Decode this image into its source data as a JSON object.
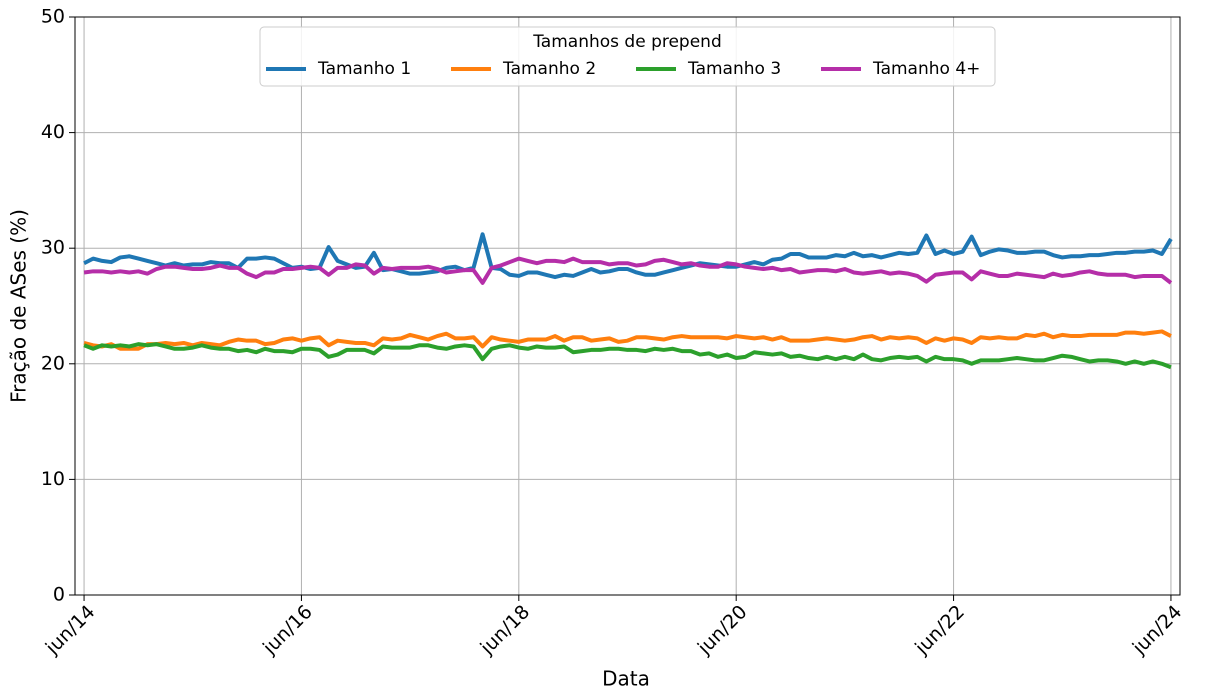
{
  "chart_data": {
    "type": "line",
    "xlabel": "Data",
    "ylabel": "Fração de ASes (%)",
    "legend_title": "Tamanhos de prepend",
    "legend": "upper center",
    "grid": true,
    "x": [
      "2014-06",
      "2014-07",
      "2014-08",
      "2014-09",
      "2014-10",
      "2014-11",
      "2014-12",
      "2015-01",
      "2015-02",
      "2015-03",
      "2015-04",
      "2015-05",
      "2015-06",
      "2015-07",
      "2015-08",
      "2015-09",
      "2015-10",
      "2015-11",
      "2015-12",
      "2016-01",
      "2016-02",
      "2016-03",
      "2016-04",
      "2016-05",
      "2016-06",
      "2016-07",
      "2016-08",
      "2016-09",
      "2016-10",
      "2016-11",
      "2016-12",
      "2017-01",
      "2017-02",
      "2017-03",
      "2017-04",
      "2017-05",
      "2017-06",
      "2017-07",
      "2017-08",
      "2017-09",
      "2017-10",
      "2017-11",
      "2017-12",
      "2018-01",
      "2018-02",
      "2018-03",
      "2018-04",
      "2018-05",
      "2018-06",
      "2018-07",
      "2018-08",
      "2018-09",
      "2018-10",
      "2018-11",
      "2018-12",
      "2019-01",
      "2019-02",
      "2019-03",
      "2019-04",
      "2019-05",
      "2019-06",
      "2019-07",
      "2019-08",
      "2019-09",
      "2019-10",
      "2019-11",
      "2019-12",
      "2020-01",
      "2020-02",
      "2020-03",
      "2020-04",
      "2020-05",
      "2020-06",
      "2020-07",
      "2020-08",
      "2020-09",
      "2020-10",
      "2020-11",
      "2020-12",
      "2021-01",
      "2021-02",
      "2021-03",
      "2021-04",
      "2021-05",
      "2021-06",
      "2021-07",
      "2021-08",
      "2021-09",
      "2021-10",
      "2021-11",
      "2021-12",
      "2022-01",
      "2022-02",
      "2022-03",
      "2022-04",
      "2022-05",
      "2022-06",
      "2022-07",
      "2022-08",
      "2022-09",
      "2022-10",
      "2022-11",
      "2022-12",
      "2023-01",
      "2023-02",
      "2023-03",
      "2023-04",
      "2023-05",
      "2023-06",
      "2023-07",
      "2023-08",
      "2023-09",
      "2023-10",
      "2023-11",
      "2023-12",
      "2024-01",
      "2024-02",
      "2024-03",
      "2024-04",
      "2024-05",
      "2024-06"
    ],
    "xlim": [
      "2014-05",
      "2024-07"
    ],
    "xticks": [
      {
        "value": "2014-06",
        "label": "jun/14"
      },
      {
        "value": "2016-06",
        "label": "jun/16"
      },
      {
        "value": "2018-06",
        "label": "jun/18"
      },
      {
        "value": "2020-06",
        "label": "jun/20"
      },
      {
        "value": "2022-06",
        "label": "jun/22"
      },
      {
        "value": "2024-06",
        "label": "jun/24"
      }
    ],
    "ylim": [
      0,
      50
    ],
    "yticks": [
      0,
      10,
      20,
      30,
      40,
      50
    ],
    "series": [
      {
        "name": "Tamanho 1",
        "color": "#1f77b4",
        "values": [
          28.7,
          29.1,
          28.9,
          28.8,
          29.2,
          29.3,
          29.1,
          28.9,
          28.7,
          28.5,
          28.7,
          28.5,
          28.6,
          28.6,
          28.8,
          28.7,
          28.7,
          28.3,
          29.1,
          29.1,
          29.2,
          29.1,
          28.7,
          28.3,
          28.4,
          28.2,
          28.3,
          30.1,
          28.9,
          28.6,
          28.3,
          28.4,
          29.6,
          28.1,
          28.2,
          28.0,
          27.8,
          27.8,
          27.9,
          28.0,
          28.3,
          28.4,
          28.1,
          28.3,
          31.2,
          28.3,
          28.2,
          27.7,
          27.6,
          27.9,
          27.9,
          27.7,
          27.5,
          27.7,
          27.6,
          27.9,
          28.2,
          27.9,
          28.0,
          28.2,
          28.2,
          27.9,
          27.7,
          27.7,
          27.9,
          28.1,
          28.3,
          28.5,
          28.7,
          28.6,
          28.5,
          28.4,
          28.4,
          28.6,
          28.8,
          28.6,
          29.0,
          29.1,
          29.5,
          29.5,
          29.2,
          29.2,
          29.2,
          29.4,
          29.3,
          29.6,
          29.3,
          29.4,
          29.2,
          29.4,
          29.6,
          29.5,
          29.6,
          31.1,
          29.5,
          29.8,
          29.5,
          29.7,
          31.0,
          29.4,
          29.7,
          29.9,
          29.8,
          29.6,
          29.6,
          29.7,
          29.7,
          29.4,
          29.2,
          29.3,
          29.3,
          29.4,
          29.4,
          29.5,
          29.6,
          29.6,
          29.7,
          29.7,
          29.8,
          29.5,
          30.8
        ]
      },
      {
        "name": "Tamanho 2",
        "color": "#ff7f0e",
        "values": [
          21.8,
          21.6,
          21.5,
          21.7,
          21.3,
          21.3,
          21.3,
          21.7,
          21.7,
          21.8,
          21.7,
          21.8,
          21.6,
          21.8,
          21.7,
          21.6,
          21.9,
          22.1,
          22.0,
          22.0,
          21.7,
          21.8,
          22.1,
          22.2,
          22.0,
          22.2,
          22.3,
          21.6,
          22.0,
          21.9,
          21.8,
          21.8,
          21.6,
          22.2,
          22.1,
          22.2,
          22.5,
          22.3,
          22.1,
          22.4,
          22.6,
          22.2,
          22.2,
          22.3,
          21.5,
          22.3,
          22.1,
          22.0,
          21.9,
          22.1,
          22.1,
          22.1,
          22.4,
          22.0,
          22.3,
          22.3,
          22.0,
          22.1,
          22.2,
          21.9,
          22.0,
          22.3,
          22.3,
          22.2,
          22.1,
          22.3,
          22.4,
          22.3,
          22.3,
          22.3,
          22.3,
          22.2,
          22.4,
          22.3,
          22.2,
          22.3,
          22.1,
          22.3,
          22.0,
          22.0,
          22.0,
          22.1,
          22.2,
          22.1,
          22.0,
          22.1,
          22.3,
          22.4,
          22.1,
          22.3,
          22.2,
          22.3,
          22.2,
          21.8,
          22.2,
          22.0,
          22.2,
          22.1,
          21.8,
          22.3,
          22.2,
          22.3,
          22.2,
          22.2,
          22.5,
          22.4,
          22.6,
          22.3,
          22.5,
          22.4,
          22.4,
          22.5,
          22.5,
          22.5,
          22.5,
          22.7,
          22.7,
          22.6,
          22.7,
          22.8,
          22.4
        ]
      },
      {
        "name": "Tamanho 3",
        "color": "#2ca02c",
        "values": [
          21.6,
          21.3,
          21.6,
          21.5,
          21.6,
          21.5,
          21.7,
          21.6,
          21.7,
          21.5,
          21.3,
          21.3,
          21.4,
          21.6,
          21.4,
          21.3,
          21.3,
          21.1,
          21.2,
          21.0,
          21.3,
          21.1,
          21.1,
          21.0,
          21.3,
          21.3,
          21.2,
          20.6,
          20.8,
          21.2,
          21.2,
          21.2,
          20.9,
          21.5,
          21.4,
          21.4,
          21.4,
          21.6,
          21.6,
          21.4,
          21.3,
          21.5,
          21.6,
          21.5,
          20.4,
          21.3,
          21.5,
          21.6,
          21.4,
          21.3,
          21.5,
          21.4,
          21.4,
          21.5,
          21.0,
          21.1,
          21.2,
          21.2,
          21.3,
          21.3,
          21.2,
          21.2,
          21.1,
          21.3,
          21.2,
          21.3,
          21.1,
          21.1,
          20.8,
          20.9,
          20.6,
          20.8,
          20.5,
          20.6,
          21.0,
          20.9,
          20.8,
          20.9,
          20.6,
          20.7,
          20.5,
          20.4,
          20.6,
          20.4,
          20.6,
          20.4,
          20.8,
          20.4,
          20.3,
          20.5,
          20.6,
          20.5,
          20.6,
          20.2,
          20.6,
          20.4,
          20.4,
          20.3,
          20.0,
          20.3,
          20.3,
          20.3,
          20.4,
          20.5,
          20.4,
          20.3,
          20.3,
          20.5,
          20.7,
          20.6,
          20.4,
          20.2,
          20.3,
          20.3,
          20.2,
          20.0,
          20.2,
          20.0,
          20.2,
          20.0,
          19.7
        ]
      },
      {
        "name": "Tamanho 4+",
        "color": "#b52ea8",
        "values": [
          27.9,
          28.0,
          28.0,
          27.9,
          28.0,
          27.9,
          28.0,
          27.8,
          28.2,
          28.4,
          28.4,
          28.3,
          28.2,
          28.2,
          28.3,
          28.5,
          28.3,
          28.3,
          27.8,
          27.5,
          27.9,
          27.9,
          28.2,
          28.2,
          28.3,
          28.4,
          28.3,
          27.7,
          28.3,
          28.3,
          28.6,
          28.5,
          27.8,
          28.3,
          28.2,
          28.3,
          28.3,
          28.3,
          28.4,
          28.2,
          27.9,
          28.0,
          28.1,
          28.1,
          27.0,
          28.3,
          28.5,
          28.8,
          29.1,
          28.9,
          28.7,
          28.9,
          28.9,
          28.8,
          29.1,
          28.8,
          28.8,
          28.8,
          28.6,
          28.7,
          28.7,
          28.5,
          28.6,
          28.9,
          29.0,
          28.8,
          28.6,
          28.7,
          28.5,
          28.4,
          28.4,
          28.7,
          28.6,
          28.4,
          28.3,
          28.2,
          28.3,
          28.1,
          28.2,
          27.9,
          28.0,
          28.1,
          28.1,
          28.0,
          28.2,
          27.9,
          27.8,
          27.9,
          28.0,
          27.8,
          27.9,
          27.8,
          27.6,
          27.1,
          27.7,
          27.8,
          27.9,
          27.9,
          27.3,
          28.0,
          27.8,
          27.6,
          27.6,
          27.8,
          27.7,
          27.6,
          27.5,
          27.8,
          27.6,
          27.7,
          27.9,
          28.0,
          27.8,
          27.7,
          27.7,
          27.7,
          27.5,
          27.6,
          27.6,
          27.6,
          27.0
        ]
      }
    ]
  }
}
